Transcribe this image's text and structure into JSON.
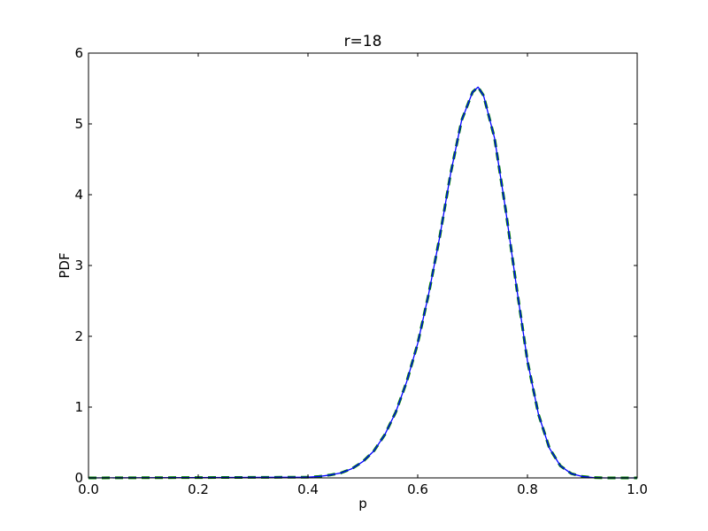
{
  "chart_data": {
    "type": "line",
    "title": "r=18",
    "xlabel": "p",
    "ylabel": "PDF",
    "xlim": [
      0.0,
      1.0
    ],
    "ylim": [
      0,
      6
    ],
    "xticks": [
      "0.0",
      "0.2",
      "0.4",
      "0.6",
      "0.8",
      "1.0"
    ],
    "yticks": [
      "0",
      "1",
      "2",
      "3",
      "4",
      "5",
      "6"
    ],
    "grid": false,
    "legend": "none",
    "series": [
      {
        "style": "solid",
        "color": "#0000ff",
        "x": [
          0.0,
          0.4,
          0.42,
          0.44,
          0.46,
          0.48,
          0.5,
          0.52,
          0.54,
          0.56,
          0.58,
          0.6,
          0.62,
          0.64,
          0.66,
          0.68,
          0.7,
          0.71,
          0.72,
          0.74,
          0.76,
          0.78,
          0.8,
          0.82,
          0.84,
          0.86,
          0.88,
          0.9,
          0.92,
          0.94,
          0.96,
          0.98,
          1.0
        ],
        "y": [
          0.0,
          0.01,
          0.02,
          0.04,
          0.07,
          0.13,
          0.23,
          0.38,
          0.61,
          0.93,
          1.36,
          1.9,
          2.6,
          3.4,
          4.3,
          5.05,
          5.45,
          5.52,
          5.4,
          4.8,
          3.8,
          2.7,
          1.65,
          0.9,
          0.42,
          0.17,
          0.06,
          0.02,
          0.005,
          0.0,
          0.0,
          0.0,
          0.0
        ]
      },
      {
        "style": "dashed",
        "color": "#008000",
        "x": [
          0.0,
          0.4,
          0.42,
          0.44,
          0.46,
          0.48,
          0.5,
          0.52,
          0.54,
          0.56,
          0.58,
          0.6,
          0.62,
          0.64,
          0.66,
          0.68,
          0.7,
          0.71,
          0.72,
          0.74,
          0.76,
          0.78,
          0.8,
          0.82,
          0.84,
          0.86,
          0.88,
          0.9,
          0.92,
          0.94,
          0.96,
          0.98,
          1.0
        ],
        "y": [
          0.0,
          0.01,
          0.02,
          0.04,
          0.07,
          0.13,
          0.23,
          0.38,
          0.61,
          0.93,
          1.36,
          1.9,
          2.6,
          3.4,
          4.3,
          5.05,
          5.45,
          5.52,
          5.4,
          4.8,
          3.8,
          2.7,
          1.65,
          0.9,
          0.42,
          0.17,
          0.06,
          0.02,
          0.005,
          0.0,
          0.0,
          0.0,
          0.0
        ]
      }
    ]
  }
}
